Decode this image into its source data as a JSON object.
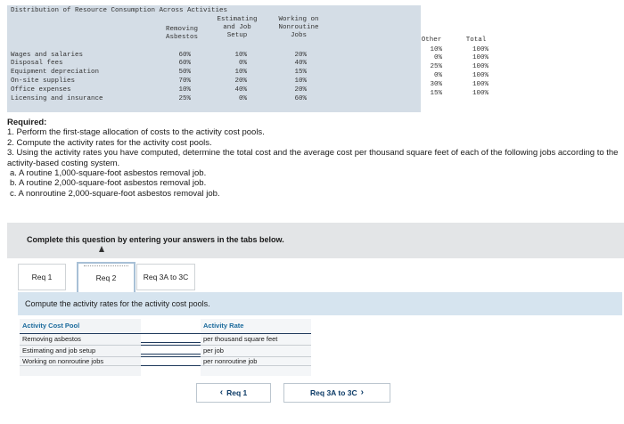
{
  "distribution": {
    "title": "Distribution of Resource Consumption Across Activities",
    "col_headers": [
      "Removing\nAsbestos",
      "Estimating\nand Job\nSetup",
      "Working on\nNonroutine\nJobs",
      "Other",
      "Total"
    ],
    "rows": [
      {
        "label": "Wages and salaries",
        "values": [
          "60%",
          "10%",
          "20%",
          "10%",
          "100%"
        ]
      },
      {
        "label": "Disposal fees",
        "values": [
          "60%",
          "0%",
          "40%",
          "0%",
          "100%"
        ]
      },
      {
        "label": "Equipment depreciation",
        "values": [
          "50%",
          "10%",
          "15%",
          "25%",
          "100%"
        ]
      },
      {
        "label": "On-site supplies",
        "values": [
          "70%",
          "20%",
          "10%",
          "0%",
          "100%"
        ]
      },
      {
        "label": "Office expenses",
        "values": [
          "10%",
          "40%",
          "20%",
          "30%",
          "100%"
        ]
      },
      {
        "label": "Licensing and insurance",
        "values": [
          "25%",
          "0%",
          "60%",
          "15%",
          "100%"
        ]
      }
    ]
  },
  "required": {
    "title": "Required:",
    "items": [
      "1. Perform the first-stage allocation of costs to the activity cost pools.",
      "2. Compute the activity rates for the activity cost pools.",
      "3. Using the activity rates you have computed, determine the total cost and the average cost per thousand square feet of each of the following jobs according to the activity-based costing system.",
      "a. A routine 1,000-square-foot asbestos removal job.",
      "b. A routine 2,000-square-foot asbestos removal job.",
      "c. A nonroutine 2,000-square-foot asbestos removal job."
    ]
  },
  "banner": {
    "text": "Complete this question by entering your answers in the tabs below."
  },
  "tabs": [
    {
      "label": "Req 1"
    },
    {
      "label": "Req 2"
    },
    {
      "label": "Req 3A to 3C"
    }
  ],
  "question": {
    "text": "Compute the activity rates for the activity cost pools."
  },
  "activity_table": {
    "header_pool": "Activity Cost Pool",
    "header_rate": "Activity Rate",
    "rows": [
      {
        "pool": "Removing asbestos",
        "rate_unit": "per thousand square feet",
        "value": ""
      },
      {
        "pool": "Estimating and job setup",
        "rate_unit": "per job",
        "value": ""
      },
      {
        "pool": "Working on nonroutine jobs",
        "rate_unit": "per nonroutine job",
        "value": ""
      }
    ]
  },
  "nav": {
    "prev_label": "Req 1",
    "next_label": "Req 3A to 3C",
    "prev_icon": "chevron-left-icon",
    "next_icon": "chevron-right-icon"
  },
  "colors": {
    "table_bg": "#d4dde6",
    "banner_bg": "#e3e5e7",
    "question_bg": "#d6e4ef",
    "link_blue": "#0b3a66",
    "header_blue": "#1a6a9c"
  }
}
